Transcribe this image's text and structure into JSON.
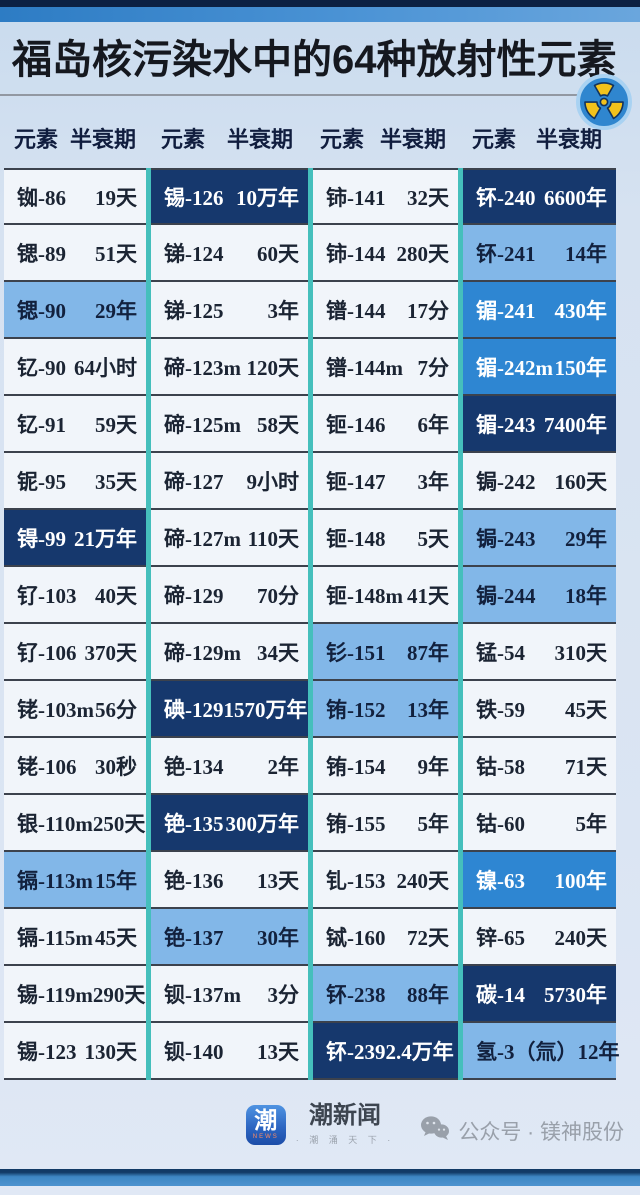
{
  "chart_data": {
    "type": "table",
    "title": "福岛核污染水中的64种放射性元素",
    "header": {
      "element_label": "元素",
      "half_life_label": "半衰期"
    },
    "highlight_levels": {
      "none": "#f1f5fa",
      "light": "#82b7e8",
      "medium": "#2e86d2",
      "dark": "#16386d"
    },
    "columns": [
      {
        "rows": [
          {
            "element": "铷-86",
            "half_life": "19天",
            "hl": "none"
          },
          {
            "element": "锶-89",
            "half_life": "51天",
            "hl": "none"
          },
          {
            "element": "锶-90",
            "half_life": "29年",
            "hl": "light"
          },
          {
            "element": "钇-90",
            "half_life": "64小时",
            "hl": "none"
          },
          {
            "element": "钇-91",
            "half_life": "59天",
            "hl": "none"
          },
          {
            "element": "铌-95",
            "half_life": "35天",
            "hl": "none"
          },
          {
            "element": "锝-99",
            "half_life": "21万年",
            "hl": "dark"
          },
          {
            "element": "钌-103",
            "half_life": "40天",
            "hl": "none"
          },
          {
            "element": "钌-106",
            "half_life": "370天",
            "hl": "none"
          },
          {
            "element": "铑-103m",
            "half_life": "56分",
            "hl": "none"
          },
          {
            "element": "铑-106",
            "half_life": "30秒",
            "hl": "none"
          },
          {
            "element": "银-110m",
            "half_life": "250天",
            "hl": "none"
          },
          {
            "element": "镉-113m",
            "half_life": "15年",
            "hl": "light"
          },
          {
            "element": "镉-115m",
            "half_life": "45天",
            "hl": "none"
          },
          {
            "element": "锡-119m",
            "half_life": "290天",
            "hl": "none"
          },
          {
            "element": "锡-123",
            "half_life": "130天",
            "hl": "none"
          }
        ]
      },
      {
        "rows": [
          {
            "element": "锡-126",
            "half_life": "10万年",
            "hl": "dark"
          },
          {
            "element": "锑-124",
            "half_life": "60天",
            "hl": "none"
          },
          {
            "element": "锑-125",
            "half_life": "3年",
            "hl": "none"
          },
          {
            "element": "碲-123m",
            "half_life": "120天",
            "hl": "none"
          },
          {
            "element": "碲-125m",
            "half_life": "58天",
            "hl": "none"
          },
          {
            "element": "碲-127",
            "half_life": "9小时",
            "hl": "none"
          },
          {
            "element": "碲-127m",
            "half_life": "110天",
            "hl": "none"
          },
          {
            "element": "碲-129",
            "half_life": "70分",
            "hl": "none"
          },
          {
            "element": "碲-129m",
            "half_life": "34天",
            "hl": "none"
          },
          {
            "element": "碘-129",
            "half_life": "1570万年",
            "hl": "dark"
          },
          {
            "element": "铯-134",
            "half_life": "2年",
            "hl": "none"
          },
          {
            "element": "铯-135",
            "half_life": "300万年",
            "hl": "dark"
          },
          {
            "element": "铯-136",
            "half_life": "13天",
            "hl": "none"
          },
          {
            "element": "铯-137",
            "half_life": "30年",
            "hl": "light"
          },
          {
            "element": "钡-137m",
            "half_life": "3分",
            "hl": "none"
          },
          {
            "element": "钡-140",
            "half_life": "13天",
            "hl": "none"
          }
        ]
      },
      {
        "rows": [
          {
            "element": "铈-141",
            "half_life": "32天",
            "hl": "none"
          },
          {
            "element": "铈-144",
            "half_life": "280天",
            "hl": "none"
          },
          {
            "element": "镨-144",
            "half_life": "17分",
            "hl": "none"
          },
          {
            "element": "镨-144m",
            "half_life": "7分",
            "hl": "none"
          },
          {
            "element": "钷-146",
            "half_life": "6年",
            "hl": "none"
          },
          {
            "element": "钷-147",
            "half_life": "3年",
            "hl": "none"
          },
          {
            "element": "钷-148",
            "half_life": "5天",
            "hl": "none"
          },
          {
            "element": "钷-148m",
            "half_life": "41天",
            "hl": "none"
          },
          {
            "element": "钐-151",
            "half_life": "87年",
            "hl": "light"
          },
          {
            "element": "铕-152",
            "half_life": "13年",
            "hl": "light"
          },
          {
            "element": "铕-154",
            "half_life": "9年",
            "hl": "none"
          },
          {
            "element": "铕-155",
            "half_life": "5年",
            "hl": "none"
          },
          {
            "element": "钆-153",
            "half_life": "240天",
            "hl": "none"
          },
          {
            "element": "铽-160",
            "half_life": "72天",
            "hl": "none"
          },
          {
            "element": "钚-238",
            "half_life": "88年",
            "hl": "light"
          },
          {
            "element": "钚-239",
            "half_life": "2.4万年",
            "hl": "dark"
          }
        ]
      },
      {
        "rows": [
          {
            "element": "钚-240",
            "half_life": "6600年",
            "hl": "dark"
          },
          {
            "element": "钚-241",
            "half_life": "14年",
            "hl": "light"
          },
          {
            "element": "镅-241",
            "half_life": "430年",
            "hl": "medium"
          },
          {
            "element": "镅-242m",
            "half_life": "150年",
            "hl": "medium"
          },
          {
            "element": "镅-243",
            "half_life": "7400年",
            "hl": "dark"
          },
          {
            "element": "锔-242",
            "half_life": "160天",
            "hl": "none"
          },
          {
            "element": "锔-243",
            "half_life": "29年",
            "hl": "light"
          },
          {
            "element": "锔-244",
            "half_life": "18年",
            "hl": "light"
          },
          {
            "element": "锰-54",
            "half_life": "310天",
            "hl": "none"
          },
          {
            "element": "铁-59",
            "half_life": "45天",
            "hl": "none"
          },
          {
            "element": "钴-58",
            "half_life": "71天",
            "hl": "none"
          },
          {
            "element": "钴-60",
            "half_life": "5年",
            "hl": "none"
          },
          {
            "element": "镍-63",
            "half_life": "100年",
            "hl": "medium"
          },
          {
            "element": "锌-65",
            "half_life": "240天",
            "hl": "none"
          },
          {
            "element": "碳-14",
            "half_life": "5730年",
            "hl": "dark"
          },
          {
            "element": "氢-3（氚）",
            "half_life": "12年",
            "hl": "light"
          }
        ]
      }
    ]
  },
  "icons": {
    "radiation": "radiation-icon",
    "wechat": "wechat-icon"
  },
  "footer": {
    "logo_char": "潮",
    "logo_mini_label": "NEWS",
    "brand_name": "潮新闻",
    "brand_tagline": "· 潮 涌 天 下 ·",
    "watermark": "公众号 · 镁神股份"
  },
  "colors": {
    "top_bar_navy": "#0c2143",
    "top_bar_blue": "#2d7cc4",
    "background": "#d6e2f1",
    "column_divider_teal": "#45bfbc",
    "row_default": "#f1f5fa",
    "row_light_blue": "#82b7e8",
    "row_medium_blue": "#2e86d2",
    "row_dark_navy": "#16386d",
    "radiation_yellow": "#f2c21c",
    "bottom_bar_blue": "#3e86c3"
  }
}
